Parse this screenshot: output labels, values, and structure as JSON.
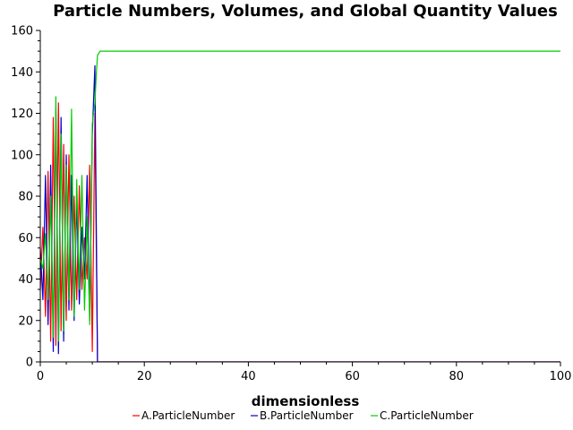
{
  "chart_data": {
    "type": "line",
    "title": "Particle Numbers, Volumes, and Global Quantity Values",
    "xlabel": "dimensionless",
    "ylabel": "",
    "xlim": [
      0,
      100
    ],
    "ylim": [
      0,
      160
    ],
    "x_ticks": [
      0,
      20,
      40,
      60,
      80,
      100
    ],
    "y_ticks": [
      0,
      20,
      40,
      60,
      80,
      100,
      120,
      140,
      160
    ],
    "grid": false,
    "legend_position": "bottom",
    "series": [
      {
        "name": "A.ParticleNumber",
        "color": "#ff0000",
        "x": [
          0,
          0.5,
          1,
          1.5,
          2,
          2.5,
          3,
          3.5,
          4,
          4.5,
          5,
          5.5,
          6,
          6.5,
          7,
          7.5,
          8,
          8.5,
          9,
          9.5,
          10,
          10.5,
          11,
          12,
          20,
          40,
          60,
          80,
          100
        ],
        "y": [
          35,
          65,
          22,
          92,
          10,
          118,
          8,
          125,
          15,
          105,
          20,
          100,
          25,
          80,
          30,
          85,
          35,
          60,
          40,
          95,
          5,
          120,
          0,
          0,
          0,
          0,
          0,
          0,
          0
        ]
      },
      {
        "name": "B.ParticleNumber",
        "color": "#0000cc",
        "x": [
          0,
          0.5,
          1,
          1.5,
          2,
          2.5,
          3,
          3.5,
          4,
          4.5,
          5,
          5.5,
          6,
          6.5,
          7,
          7.5,
          8,
          8.5,
          9,
          9.5,
          10,
          10.5,
          11,
          12,
          20,
          40,
          60,
          80,
          100
        ],
        "y": [
          55,
          30,
          90,
          18,
          95,
          5,
          122,
          4,
          118,
          10,
          100,
          25,
          90,
          20,
          78,
          28,
          65,
          40,
          90,
          20,
          110,
          143,
          0,
          0,
          0,
          0,
          0,
          0,
          0
        ]
      },
      {
        "name": "C.ParticleNumber",
        "color": "#00cc00",
        "x": [
          0,
          0.5,
          1,
          1.5,
          2,
          2.5,
          3,
          3.5,
          4,
          4.5,
          5,
          5.5,
          6,
          6.5,
          7,
          7.5,
          8,
          8.5,
          9,
          9.5,
          10,
          10.5,
          10.8,
          11,
          11.5,
          12,
          20,
          40,
          60,
          80,
          100
        ],
        "y": [
          50,
          45,
          62,
          30,
          80,
          12,
          128,
          10,
          110,
          15,
          95,
          30,
          122,
          22,
          88,
          35,
          90,
          25,
          70,
          18,
          115,
          125,
          140,
          148,
          150,
          150,
          150,
          150,
          150,
          150,
          150
        ]
      }
    ]
  }
}
